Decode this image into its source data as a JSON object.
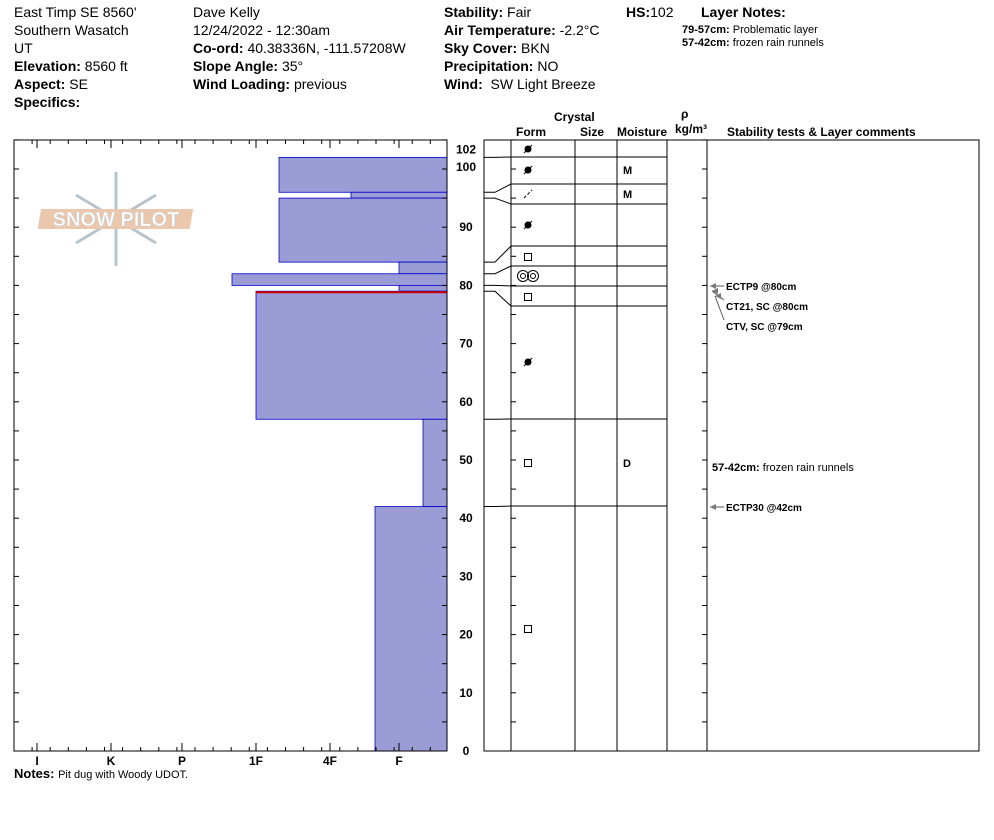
{
  "header": {
    "location": "East Timp SE 8560'",
    "range": "Southern Wasatch",
    "state": "UT",
    "elevation_label": "Elevation:",
    "elevation": "8560 ft",
    "aspect_label": "Aspect:",
    "aspect": "SE",
    "specifics_label": "Specifics:",
    "observer": "Dave Kelly",
    "datetime": "12/24/2022 - 12:30am",
    "coord_label": "Co-ord:",
    "coord": "40.38336N, -111.57208W",
    "slope_label": "Slope Angle:",
    "slope": "35°",
    "wind_loading_label": "Wind Loading:",
    "wind_loading": "previous",
    "stability_label": "Stability:",
    "stability": "Fair",
    "air_temp_label": "Air Temperature:",
    "air_temp": "-2.2°C",
    "sky_label": "Sky Cover:",
    "sky": "BKN",
    "precip_label": "Precipitation:",
    "precip": "NO",
    "wind_label": "Wind:",
    "wind": "SW Light Breeze",
    "hs_label": "HS:",
    "hs": "102",
    "layer_notes_label": "Layer Notes:",
    "layer_notes": [
      {
        "range": "79-57cm:",
        "text": "Problematic layer"
      },
      {
        "range": "57-42cm:",
        "text": "frozen rain runnels"
      }
    ]
  },
  "columns": {
    "crystal": "Crystal",
    "form": "Form",
    "size": "Size",
    "moisture": "Moisture",
    "rho": "ρ",
    "density": "kg/m³",
    "comments": "Stability tests & Layer comments"
  },
  "logo": "SNOW PILOT",
  "chart_data": {
    "type": "bar",
    "orientation": "horizontal",
    "ylabel": "",
    "ylim": [
      0,
      105
    ],
    "yticks": [
      "0",
      "10",
      "20",
      "30",
      "40",
      "50",
      "60",
      "70",
      "80",
      "90",
      "100",
      "102"
    ],
    "xticks": [
      "I",
      "K",
      "P",
      "1F",
      "4F",
      "F"
    ],
    "colors": {
      "fill": "#9b9bd6",
      "edge": "#0000cc",
      "highlight": "#cc0000"
    },
    "layers": [
      {
        "top": 102,
        "bottom": 96,
        "hardness": "1F+"
      },
      {
        "top": 96,
        "bottom": 95,
        "hardness": "4F+"
      },
      {
        "top": 95,
        "bottom": 84,
        "hardness": "1F+"
      },
      {
        "top": 84,
        "bottom": 82,
        "hardness": "F"
      },
      {
        "top": 82,
        "bottom": 80,
        "hardness": "1F-"
      },
      {
        "top": 80,
        "bottom": 79,
        "hardness": "F"
      },
      {
        "top": 79,
        "bottom": 57,
        "hardness": "1F",
        "problematic": true
      },
      {
        "top": 57,
        "bottom": 42,
        "hardness": "F-"
      },
      {
        "top": 42,
        "bottom": 0,
        "hardness": "F+"
      }
    ]
  },
  "grain_rows": [
    {
      "form": "precipitation-particle",
      "moisture": ""
    },
    {
      "form": "precipitation-particle",
      "moisture": "M"
    },
    {
      "form": "decomposing-fragment",
      "moisture": "M"
    },
    {
      "form": "precipitation-particle",
      "moisture": ""
    },
    {
      "form": "faceted-square",
      "moisture": ""
    },
    {
      "form": "melt-freeze-rounds",
      "moisture": ""
    },
    {
      "form": "faceted-square",
      "moisture": ""
    },
    {
      "form": "precipitation-particle",
      "moisture": ""
    },
    {
      "form": "faceted-square",
      "moisture": "D"
    },
    {
      "form": "faceted-square",
      "moisture": ""
    }
  ],
  "stability_tests": [
    {
      "text": "ECTP9 @80cm"
    },
    {
      "text": "CT21, SC @80cm"
    },
    {
      "text": "CTV, SC @79cm"
    },
    {
      "text": "57-42cm:",
      "extra": "frozen rain runnels"
    },
    {
      "text": "ECTP30 @42cm"
    }
  ],
  "notes_label": "Notes:",
  "notes": "Pit dug with Woody UDOT."
}
